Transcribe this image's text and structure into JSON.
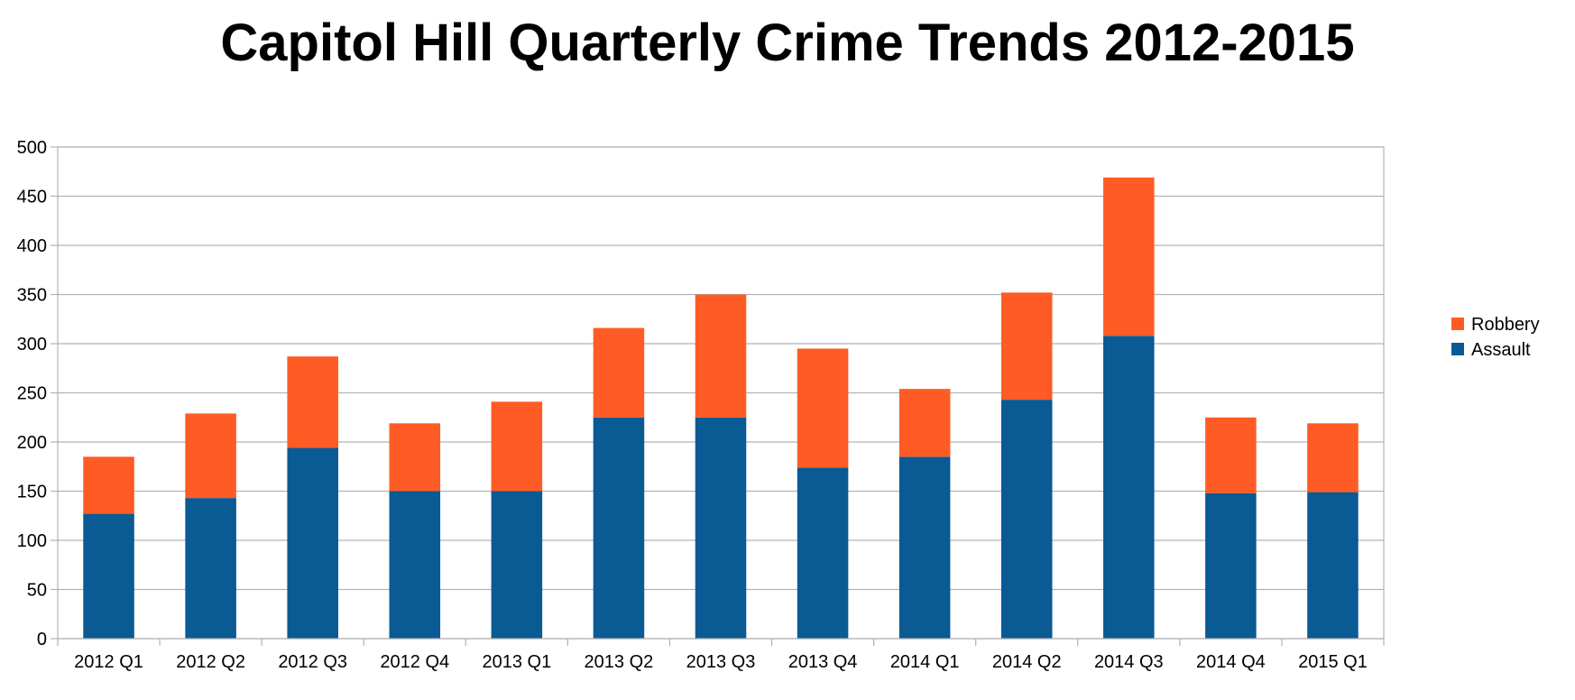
{
  "chart_data": {
    "type": "bar",
    "stacked": true,
    "title": "Capitol Hill Quarterly Crime Trends 2012-2015",
    "xlabel": "",
    "ylabel": "",
    "ylim": [
      0,
      500
    ],
    "yticks": [
      "0",
      "50",
      "100",
      "150",
      "200",
      "250",
      "300",
      "350",
      "400",
      "450",
      "500"
    ],
    "grid": true,
    "legend_position": "right",
    "categories": [
      "2012 Q1",
      "2012 Q2",
      "2012 Q3",
      "2012 Q4",
      "2013 Q1",
      "2013 Q2",
      "2013 Q3",
      "2013 Q4",
      "2014 Q1",
      "2014 Q2",
      "2014 Q3",
      "2014 Q4",
      "2015 Q1"
    ],
    "series": [
      {
        "name": "Assault",
        "color": "#0a5a94",
        "values": [
          127,
          143,
          194,
          150,
          150,
          225,
          225,
          174,
          185,
          243,
          308,
          148,
          149
        ]
      },
      {
        "name": "Robbery",
        "color": "#ff5b24",
        "values": [
          58,
          86,
          93,
          69,
          91,
          91,
          125,
          121,
          69,
          109,
          161,
          77,
          70
        ]
      }
    ],
    "legend_order": [
      "Robbery",
      "Assault"
    ]
  }
}
